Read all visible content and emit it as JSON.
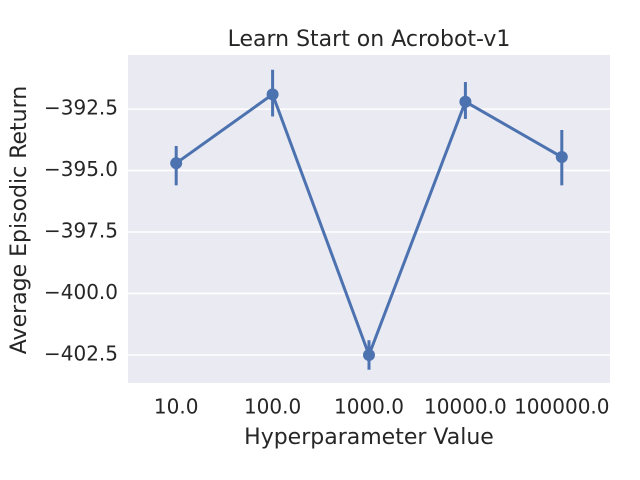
{
  "chart_data": {
    "type": "pointplot",
    "title": "Learn Start on Acrobot-v1",
    "x_label": "Hyperparameter Value",
    "y_label": "Average Episodic Return",
    "categories": [
      "10.0",
      "100.0",
      "1000.0",
      "10000.0",
      "100000.0"
    ],
    "series": [
      {
        "color": "#4c72b0",
        "values": [
          -394.7,
          -391.9,
          -402.5,
          -392.2,
          -394.45
        ],
        "ci_low": [
          -395.6,
          -392.8,
          -403.1,
          -392.9,
          -395.6
        ],
        "ci_high": [
          -394.0,
          -390.9,
          -401.9,
          -391.4,
          -393.35
        ]
      }
    ],
    "ylim": [
      -403.64,
      -390.3
    ],
    "yticks": [
      {
        "value": -392.5,
        "label": "−392.5"
      },
      {
        "value": -395,
        "label": "−395.0"
      },
      {
        "value": -397.5,
        "label": "−397.5"
      },
      {
        "value": -400,
        "label": "−400.0"
      },
      {
        "value": -402.5,
        "label": "−402.5"
      }
    ],
    "grid": true,
    "background": "#eaeaf2"
  }
}
